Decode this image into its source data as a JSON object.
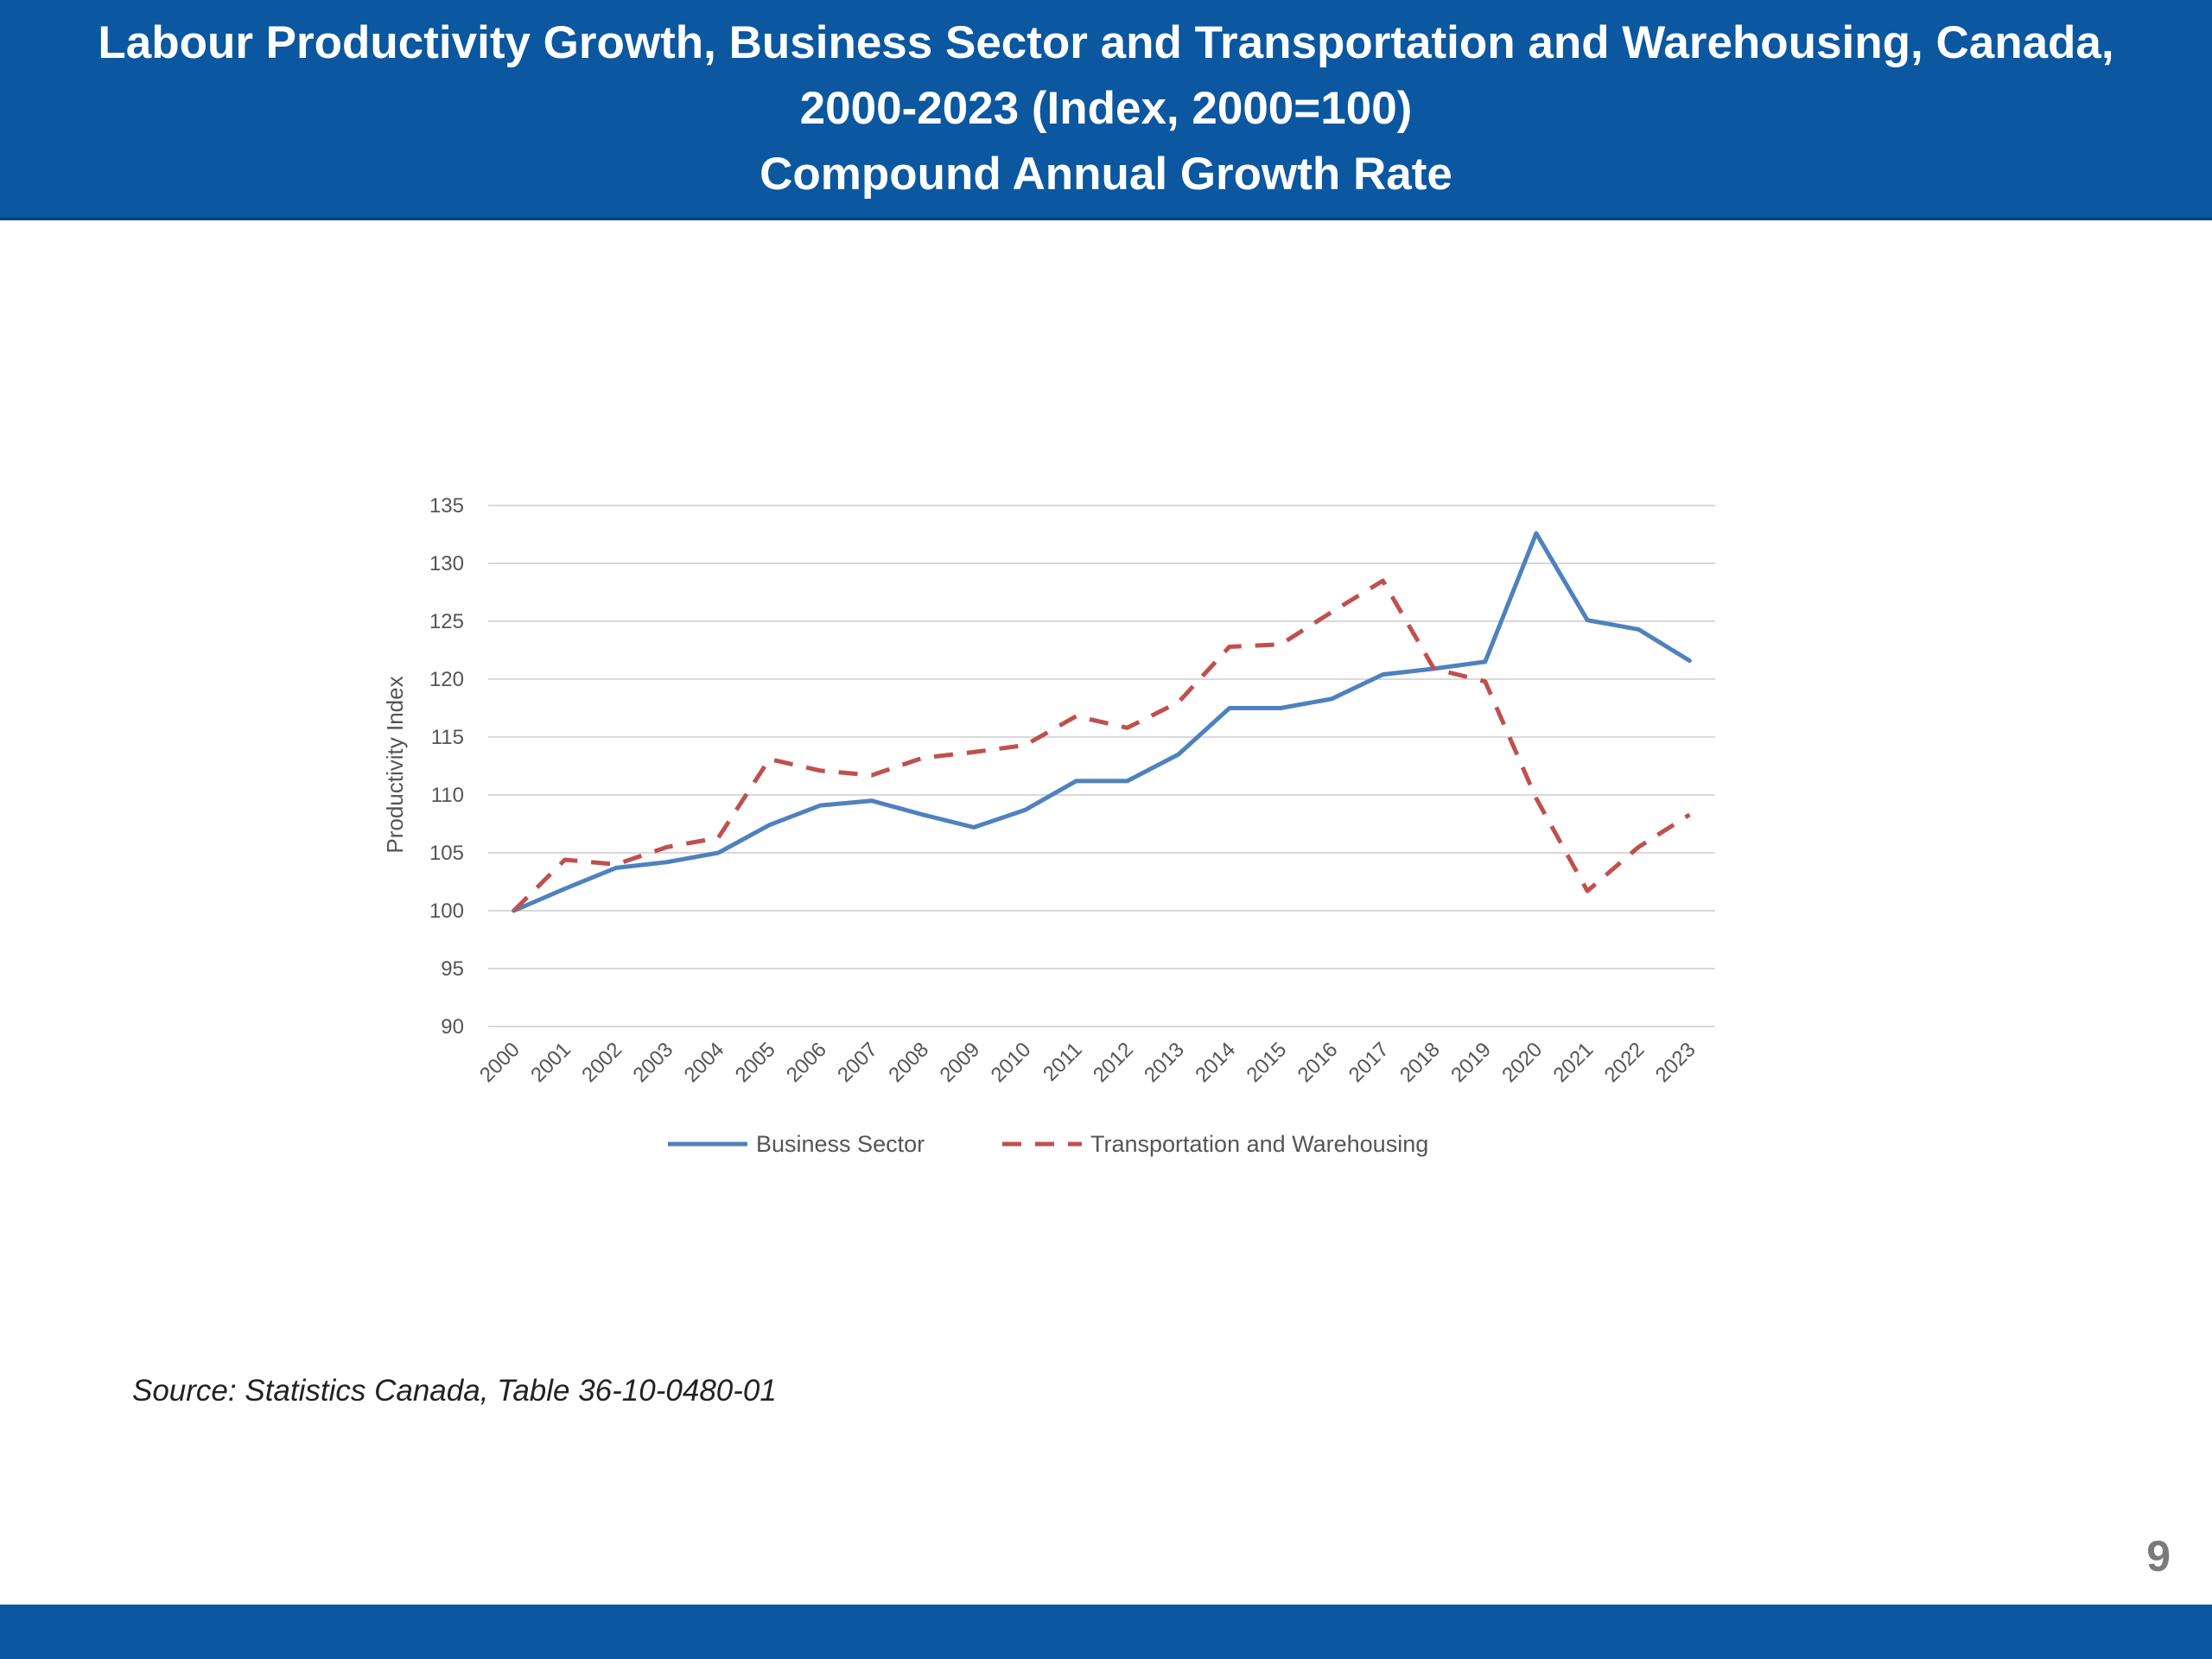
{
  "header": {
    "title_line1": "Labour Productivity Growth, Business Sector and Transportation and Warehousing, Canada,",
    "title_line2": "2000-2023 (Index, 2000=100)",
    "title_line3": "Compound Annual Growth Rate"
  },
  "chart_data": {
    "type": "line",
    "ylabel": "Productivity Index",
    "xlabel": "",
    "ylim": [
      90,
      135
    ],
    "ytick_step": 5,
    "grid": true,
    "legend_position": "bottom",
    "categories": [
      "2000",
      "2001",
      "2002",
      "2003",
      "2004",
      "2005",
      "2006",
      "2007",
      "2008",
      "2009",
      "2010",
      "2011",
      "2012",
      "2013",
      "2014",
      "2015",
      "2016",
      "2017",
      "2018",
      "2019",
      "2020",
      "2021",
      "2022",
      "2023"
    ],
    "series": [
      {
        "name": "Business Sector",
        "color": "#4f81bd",
        "style": "solid",
        "values": [
          100,
          101.9,
          103.7,
          104.2,
          105.0,
          107.4,
          109.1,
          109.5,
          108.3,
          107.2,
          108.7,
          111.2,
          111.2,
          113.5,
          117.5,
          117.5,
          118.3,
          120.4,
          120.9,
          121.5,
          132.6,
          125.1,
          124.3,
          121.6
        ]
      },
      {
        "name": "Transportation and Warehousing",
        "color": "#c0504d",
        "style": "dashed",
        "values": [
          100,
          104.4,
          104.0,
          105.5,
          106.3,
          113.1,
          112.1,
          111.7,
          113.2,
          113.7,
          114.3,
          116.8,
          115.8,
          118.0,
          122.8,
          123.0,
          125.8,
          128.5,
          120.9,
          119.8,
          109.7,
          101.7,
          105.5,
          108.3
        ]
      }
    ]
  },
  "footer": {
    "source": "Source: Statistics Canada, Table 36-10-0480-01",
    "page_number": "9"
  }
}
